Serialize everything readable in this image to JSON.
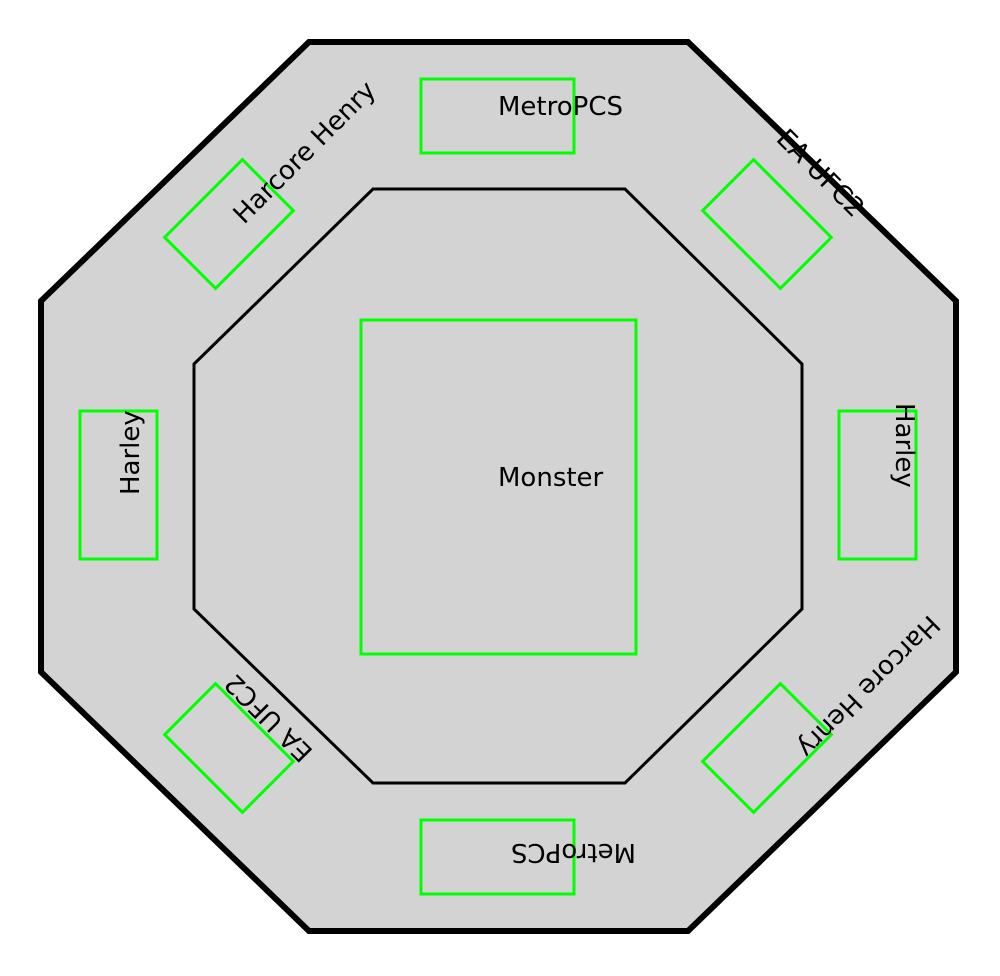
{
  "colors": {
    "canvas_fill": "#d3d3d3",
    "outline": "#000000",
    "sponsor_box": "#00ff00",
    "text": "#000000"
  },
  "center_sponsor": {
    "label": "Monster"
  },
  "ring_sponsors": [
    {
      "position": "top",
      "label": "MetroPCS"
    },
    {
      "position": "top-right",
      "label": "EA UFC2"
    },
    {
      "position": "right",
      "label": "Harley"
    },
    {
      "position": "bottom-right",
      "label": "Harcore Henry"
    },
    {
      "position": "bottom",
      "label": "MetroPCS"
    },
    {
      "position": "bottom-left",
      "label": "EA UFC2"
    },
    {
      "position": "left",
      "label": "Harley"
    },
    {
      "position": "top-left",
      "label": "Harcore Henry"
    }
  ]
}
